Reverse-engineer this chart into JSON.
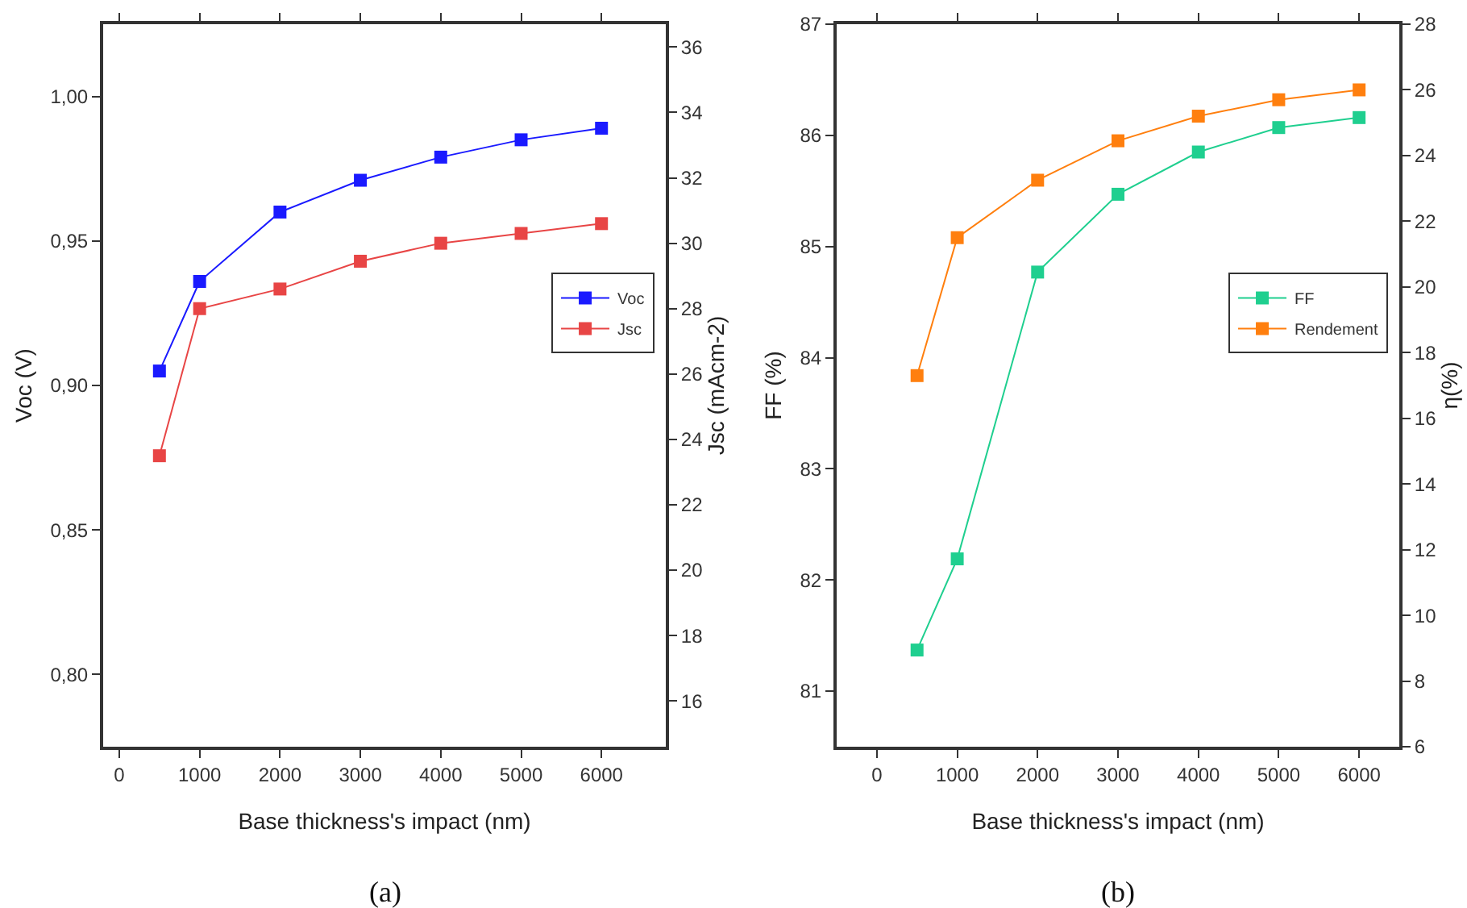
{
  "chart_data": [
    {
      "type": "line",
      "xlabel": "Base thickness's impact (nm)",
      "ylabel": "Voc (V)",
      "y2label": "Jsc (mAcm-2)",
      "annotations": [
        "(a)"
      ],
      "x": [
        500,
        1000,
        2000,
        3000,
        4000,
        5000,
        6000
      ],
      "series": [
        {
          "name": "Voc",
          "color": "#1a1aff",
          "values": [
            0.905,
            0.936,
            0.96,
            0.971,
            0.979,
            0.985,
            0.989
          ]
        },
        {
          "name": "Jsc",
          "color": "#e84545",
          "axis": "y2",
          "values": [
            23.5,
            28.0,
            28.6,
            29.45,
            30.0,
            30.3,
            30.6
          ]
        }
      ],
      "xlim": [
        -200,
        6800
      ],
      "xticks": [
        0,
        1000,
        2000,
        3000,
        4000,
        5000,
        6000
      ],
      "ylim": [
        0.775,
        1.025
      ],
      "yticks": [
        {
          "value": 0.8,
          "label": "0,80"
        },
        {
          "value": 0.85,
          "label": "0,85"
        },
        {
          "value": 0.9,
          "label": "0,90"
        },
        {
          "value": 0.95,
          "label": "0,95"
        },
        {
          "value": 1.0,
          "label": "1,00"
        }
      ],
      "y2lim": [
        14.6,
        36.7
      ],
      "y2ticks": [
        16,
        18,
        20,
        22,
        24,
        26,
        28,
        30,
        32,
        34,
        36
      ],
      "grid": false,
      "legend": "right",
      "marker": "square",
      "line_style": "solid"
    },
    {
      "type": "line",
      "xlabel": "Base thickness's impact (nm)",
      "ylabel": "FF (%)",
      "y2label": "η(%)",
      "annotations": [
        "(b)"
      ],
      "x": [
        500,
        1000,
        2000,
        3000,
        4000,
        5000,
        6000
      ],
      "series": [
        {
          "name": "FF",
          "color": "#1fcf8f",
          "values": [
            81.37,
            82.19,
            84.77,
            85.47,
            85.85,
            86.07,
            86.16
          ]
        },
        {
          "name": "Rendement",
          "color": "#ff7f0e",
          "axis": "y2",
          "values": [
            17.3,
            21.5,
            23.25,
            24.45,
            25.2,
            25.7,
            26.0
          ]
        }
      ],
      "xlim": [
        -500,
        6500
      ],
      "xticks": [
        0,
        1000,
        2000,
        3000,
        4000,
        5000,
        6000
      ],
      "ylim": [
        80.5,
        87
      ],
      "yticks": [
        81,
        82,
        83,
        84,
        85,
        86,
        87
      ],
      "y2lim": [
        6,
        28
      ],
      "y2ticks": [
        6,
        8,
        10,
        12,
        14,
        16,
        18,
        20,
        22,
        24,
        26,
        28
      ],
      "grid": false,
      "legend": "right",
      "marker": "square",
      "line_style": "solid"
    }
  ]
}
